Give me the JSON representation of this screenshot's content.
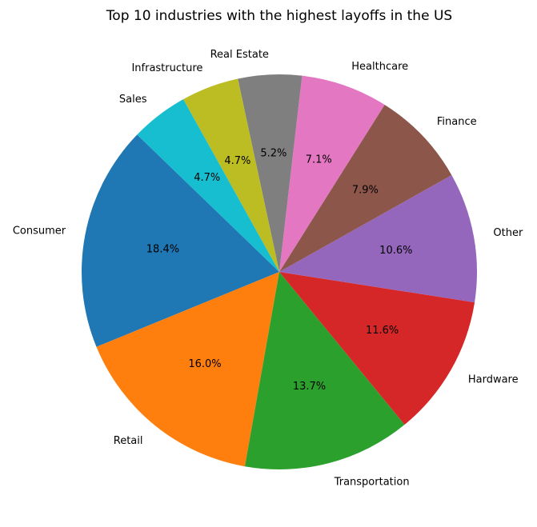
{
  "chart_data": {
    "type": "pie",
    "title": "Top 10 industries with the highest layoffs in the US",
    "start_angle_deg": 136,
    "counterclockwise": true,
    "slices": [
      {
        "label": "Consumer",
        "value": 18.4,
        "pct_text": "18.4%",
        "color": "#1f77b4"
      },
      {
        "label": "Retail",
        "value": 16.0,
        "pct_text": "16.0%",
        "color": "#ff7f0e"
      },
      {
        "label": "Transportation",
        "value": 13.7,
        "pct_text": "13.7%",
        "color": "#2ca02c"
      },
      {
        "label": "Hardware",
        "value": 11.6,
        "pct_text": "11.6%",
        "color": "#d62728"
      },
      {
        "label": "Other",
        "value": 10.6,
        "pct_text": "10.6%",
        "color": "#9467bd"
      },
      {
        "label": "Finance",
        "value": 7.9,
        "pct_text": "7.9%",
        "color": "#8c564b"
      },
      {
        "label": "Healthcare",
        "value": 7.1,
        "pct_text": "7.1%",
        "color": "#e377c2"
      },
      {
        "label": "Real Estate",
        "value": 5.2,
        "pct_text": "5.2%",
        "color": "#7f7f7f"
      },
      {
        "label": "Infrastructure",
        "value": 4.7,
        "pct_text": "4.7%",
        "color": "#bcbd22"
      },
      {
        "label": "Sales",
        "value": 4.7,
        "pct_text": "4.7%",
        "color": "#17becf"
      }
    ]
  }
}
